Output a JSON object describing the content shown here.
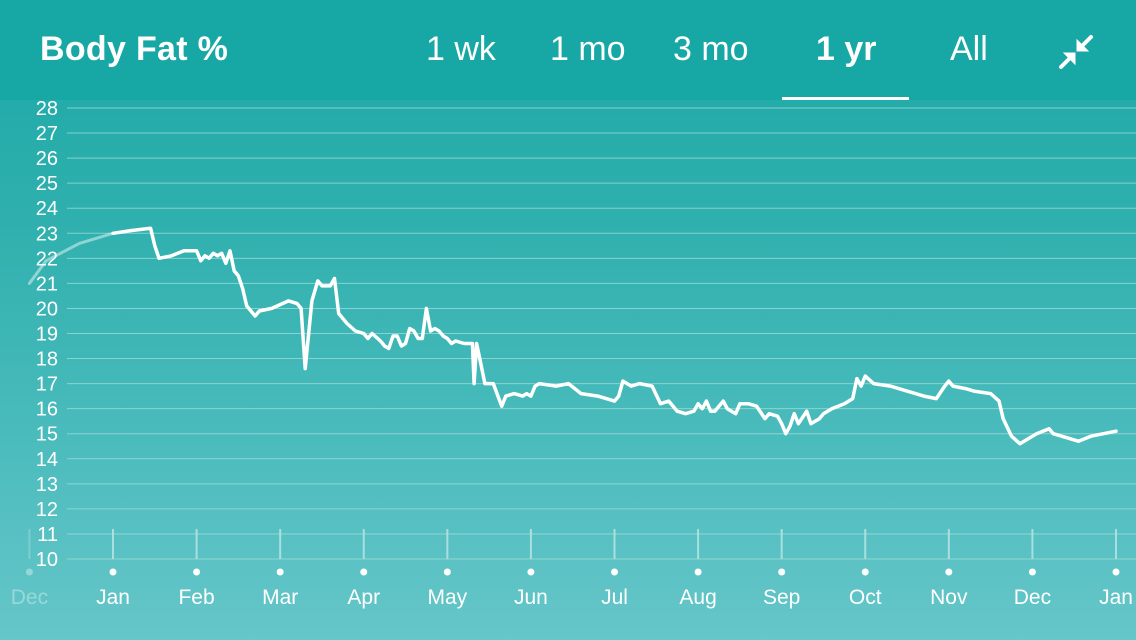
{
  "header": {
    "title": "Body Fat %",
    "tabs": [
      {
        "label": "1 wk",
        "active": false
      },
      {
        "label": "1 mo",
        "active": false
      },
      {
        "label": "3 mo",
        "active": false
      },
      {
        "label": "1 yr",
        "active": true
      },
      {
        "label": "All",
        "active": false
      }
    ],
    "collapse_icon": "collapse-arrows-icon"
  },
  "colors": {
    "header_bg": "#17a7a4",
    "line": "#ffffff",
    "grid": "#9ed9d7"
  },
  "chart_data": {
    "type": "line",
    "title": "Body Fat %",
    "xlabel": "",
    "ylabel": "",
    "ylim": [
      10,
      28
    ],
    "yticks": [
      10,
      11,
      12,
      13,
      14,
      15,
      16,
      17,
      18,
      19,
      20,
      21,
      22,
      23,
      24,
      25,
      26,
      27,
      28
    ],
    "x_tick_labels": [
      "Dec",
      "Jan",
      "Feb",
      "Mar",
      "Apr",
      "May",
      "Jun",
      "Jul",
      "Aug",
      "Sep",
      "Oct",
      "Nov",
      "Dec",
      "Jan"
    ],
    "grid": true,
    "series": [
      {
        "values": [
          [
            0.0,
            23.0
          ],
          [
            0.2,
            23.1
          ],
          [
            0.45,
            23.2
          ],
          [
            0.5,
            22.5
          ],
          [
            0.55,
            22.0
          ],
          [
            0.7,
            22.1
          ],
          [
            0.85,
            22.3
          ],
          [
            1.0,
            22.3
          ],
          [
            1.05,
            21.9
          ],
          [
            1.1,
            22.1
          ],
          [
            1.15,
            22.0
          ],
          [
            1.2,
            22.2
          ],
          [
            1.25,
            22.1
          ],
          [
            1.3,
            22.2
          ],
          [
            1.35,
            21.8
          ],
          [
            1.4,
            22.3
          ],
          [
            1.45,
            21.5
          ],
          [
            1.5,
            21.3
          ],
          [
            1.55,
            20.8
          ],
          [
            1.6,
            20.1
          ],
          [
            1.7,
            19.7
          ],
          [
            1.75,
            19.9
          ],
          [
            1.9,
            20.0
          ],
          [
            2.1,
            20.3
          ],
          [
            2.2,
            20.2
          ],
          [
            2.25,
            20.0
          ],
          [
            2.3,
            17.6
          ],
          [
            2.38,
            20.3
          ],
          [
            2.45,
            21.1
          ],
          [
            2.5,
            20.9
          ],
          [
            2.6,
            20.9
          ],
          [
            2.65,
            21.2
          ],
          [
            2.7,
            19.8
          ],
          [
            2.8,
            19.4
          ],
          [
            2.9,
            19.1
          ],
          [
            3.0,
            19.0
          ],
          [
            3.05,
            18.8
          ],
          [
            3.1,
            19.0
          ],
          [
            3.2,
            18.7
          ],
          [
            3.25,
            18.5
          ],
          [
            3.3,
            18.4
          ],
          [
            3.35,
            18.9
          ],
          [
            3.4,
            18.9
          ],
          [
            3.45,
            18.5
          ],
          [
            3.5,
            18.6
          ],
          [
            3.55,
            19.2
          ],
          [
            3.6,
            19.1
          ],
          [
            3.65,
            18.8
          ],
          [
            3.7,
            18.8
          ],
          [
            3.75,
            20.0
          ],
          [
            3.8,
            19.1
          ],
          [
            3.85,
            19.2
          ],
          [
            3.9,
            19.1
          ],
          [
            3.95,
            18.9
          ],
          [
            4.0,
            18.8
          ],
          [
            4.05,
            18.6
          ],
          [
            4.1,
            18.7
          ],
          [
            4.2,
            18.6
          ],
          [
            4.3,
            18.6
          ],
          [
            4.32,
            17.0
          ],
          [
            4.35,
            18.6
          ],
          [
            4.4,
            17.8
          ],
          [
            4.45,
            17.0
          ],
          [
            4.55,
            17.0
          ],
          [
            4.65,
            16.1
          ],
          [
            4.7,
            16.5
          ],
          [
            4.8,
            16.6
          ],
          [
            4.9,
            16.5
          ],
          [
            4.95,
            16.6
          ],
          [
            5.0,
            16.5
          ],
          [
            5.05,
            16.9
          ],
          [
            5.1,
            17.0
          ],
          [
            5.3,
            16.9
          ],
          [
            5.45,
            17.0
          ],
          [
            5.6,
            16.6
          ],
          [
            5.8,
            16.5
          ],
          [
            6.0,
            16.3
          ],
          [
            6.05,
            16.5
          ],
          [
            6.1,
            17.1
          ],
          [
            6.2,
            16.9
          ],
          [
            6.3,
            17.0
          ],
          [
            6.45,
            16.9
          ],
          [
            6.55,
            16.2
          ],
          [
            6.65,
            16.3
          ],
          [
            6.75,
            15.9
          ],
          [
            6.85,
            15.8
          ],
          [
            6.95,
            15.9
          ],
          [
            7.0,
            16.2
          ],
          [
            7.05,
            16.0
          ],
          [
            7.1,
            16.3
          ],
          [
            7.15,
            15.9
          ],
          [
            7.2,
            15.9
          ],
          [
            7.3,
            16.3
          ],
          [
            7.35,
            16.0
          ],
          [
            7.45,
            15.8
          ],
          [
            7.5,
            16.2
          ],
          [
            7.6,
            16.2
          ],
          [
            7.7,
            16.1
          ],
          [
            7.8,
            15.6
          ],
          [
            7.85,
            15.8
          ],
          [
            7.95,
            15.7
          ],
          [
            8.0,
            15.4
          ],
          [
            8.05,
            15.0
          ],
          [
            8.1,
            15.3
          ],
          [
            8.15,
            15.8
          ],
          [
            8.2,
            15.4
          ],
          [
            8.3,
            15.9
          ],
          [
            8.35,
            15.4
          ],
          [
            8.45,
            15.6
          ],
          [
            8.5,
            15.8
          ],
          [
            8.6,
            16.0
          ],
          [
            8.75,
            16.2
          ],
          [
            8.85,
            16.4
          ],
          [
            8.9,
            17.2
          ],
          [
            8.95,
            16.9
          ],
          [
            9.0,
            17.3
          ],
          [
            9.1,
            17.0
          ],
          [
            9.3,
            16.9
          ],
          [
            9.5,
            16.7
          ],
          [
            9.7,
            16.5
          ],
          [
            9.85,
            16.4
          ],
          [
            9.95,
            16.9
          ],
          [
            10.0,
            17.1
          ],
          [
            10.05,
            16.9
          ],
          [
            10.2,
            16.8
          ],
          [
            10.3,
            16.7
          ],
          [
            10.5,
            16.6
          ],
          [
            10.6,
            16.3
          ],
          [
            10.65,
            15.6
          ],
          [
            10.75,
            14.9
          ],
          [
            10.85,
            14.6
          ],
          [
            10.95,
            14.8
          ],
          [
            11.05,
            15.0
          ],
          [
            11.2,
            15.2
          ],
          [
            11.25,
            15.0
          ],
          [
            11.35,
            14.9
          ],
          [
            11.45,
            14.8
          ],
          [
            11.55,
            14.7
          ],
          [
            11.7,
            14.9
          ],
          [
            11.85,
            15.0
          ],
          [
            12.0,
            15.1
          ]
        ]
      },
      {
        "values": [
          [
            -1.0,
            21.0
          ],
          [
            -0.8,
            21.9
          ],
          [
            -0.4,
            22.6
          ],
          [
            0.0,
            23.0
          ]
        ]
      }
    ]
  }
}
